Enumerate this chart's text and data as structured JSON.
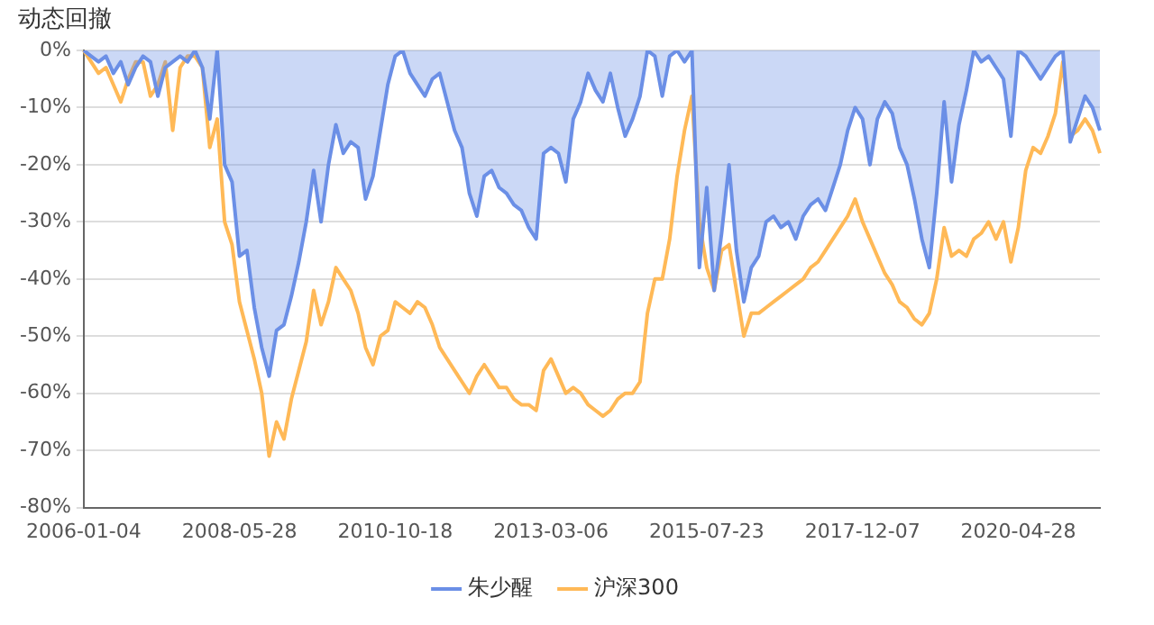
{
  "chart_data": {
    "type": "line",
    "ylabel": "动态回撤",
    "categories": [
      "2006-01-04",
      null,
      null,
      null,
      null,
      null,
      null,
      null,
      null,
      null,
      null,
      null,
      null,
      null,
      null,
      null,
      null,
      null,
      null,
      null,
      null,
      "2008-05-28",
      null,
      null,
      null,
      null,
      null,
      null,
      null,
      null,
      null,
      null,
      null,
      null,
      null,
      null,
      null,
      null,
      null,
      null,
      null,
      null,
      "2010-10-18",
      null,
      null,
      null,
      null,
      null,
      null,
      null,
      null,
      null,
      null,
      null,
      null,
      null,
      null,
      null,
      null,
      null,
      null,
      null,
      null,
      "2013-03-06",
      null,
      null,
      null,
      null,
      null,
      null,
      null,
      null,
      null,
      null,
      null,
      null,
      null,
      null,
      null,
      null,
      null,
      null,
      null,
      null,
      "2015-07-23",
      null,
      null,
      null,
      null,
      null,
      null,
      null,
      null,
      null,
      null,
      null,
      null,
      null,
      null,
      null,
      null,
      null,
      null,
      null,
      null,
      "2017-12-07",
      null,
      null,
      null,
      null,
      null,
      null,
      null,
      null,
      null,
      null,
      null,
      null,
      null,
      null,
      null,
      null,
      null,
      null,
      null,
      null,
      "2020-04-28",
      null,
      null,
      null,
      null,
      null,
      null,
      null,
      null,
      null,
      null,
      null
    ],
    "series": [
      {
        "name": "朱少醒",
        "type": "area",
        "color": "#6b8fe6",
        "values": [
          0,
          -1,
          -2,
          -1,
          -4,
          -2,
          -6,
          -3,
          -1,
          -2,
          -8,
          -3,
          -2,
          -1,
          -2,
          0,
          -3,
          -12,
          0,
          -20,
          -23,
          -36,
          -35,
          -45,
          -52,
          -57,
          -49,
          -48,
          -43,
          -37,
          -30,
          -21,
          -30,
          -20,
          -13,
          -18,
          -16,
          -17,
          -26,
          -22,
          -14,
          -6,
          -1,
          0,
          -4,
          -6,
          -8,
          -5,
          -4,
          -9,
          -14,
          -17,
          -25,
          -29,
          -22,
          -21,
          -24,
          -25,
          -27,
          -28,
          -31,
          -33,
          -18,
          -17,
          -18,
          -23,
          -12,
          -9,
          -4,
          -7,
          -9,
          -4,
          -10,
          -15,
          -12,
          -8,
          0,
          -1,
          -8,
          -1,
          0,
          -2,
          0,
          -38,
          -24,
          -42,
          -32,
          -20,
          -35,
          -44,
          -38,
          -36,
          -30,
          -29,
          -31,
          -30,
          -33,
          -29,
          -27,
          -26,
          -28,
          -24,
          -20,
          -14,
          -10,
          -12,
          -20,
          -12,
          -9,
          -11,
          -17,
          -20,
          -26,
          -33,
          -38,
          -25,
          -9,
          -23,
          -13,
          -7,
          0,
          -2,
          -1,
          -3,
          -5,
          -15,
          0,
          -1,
          -3,
          -5,
          -3,
          -1,
          0,
          -16,
          -12,
          -8,
          -10,
          -14
        ]
      },
      {
        "name": "沪深300",
        "type": "line",
        "color": "#ffb957",
        "values": [
          0,
          -2,
          -4,
          -3,
          -6,
          -9,
          -5,
          -2,
          -2,
          -8,
          -6,
          -2,
          -14,
          -3,
          -1,
          -1,
          -3,
          -17,
          -12,
          -30,
          -34,
          -44,
          -49,
          -54,
          -60,
          -71,
          -65,
          -68,
          -61,
          -56,
          -51,
          -42,
          -48,
          -44,
          -38,
          -40,
          -42,
          -46,
          -52,
          -55,
          -50,
          -49,
          -44,
          -45,
          -46,
          -44,
          -45,
          -48,
          -52,
          -54,
          -56,
          -58,
          -60,
          -57,
          -55,
          -57,
          -59,
          -59,
          -61,
          -62,
          -62,
          -63,
          -56,
          -54,
          -57,
          -60,
          -59,
          -60,
          -62,
          -63,
          -64,
          -63,
          -61,
          -60,
          -60,
          -58,
          -46,
          -40,
          -40,
          -33,
          -22,
          -14,
          -8,
          -30,
          -38,
          -42,
          -35,
          -34,
          -42,
          -50,
          -46,
          -46,
          -45,
          -44,
          -43,
          -42,
          -41,
          -40,
          -38,
          -37,
          -35,
          -33,
          -31,
          -29,
          -26,
          -30,
          -33,
          -36,
          -39,
          -41,
          -44,
          -45,
          -47,
          -48,
          -46,
          -40,
          -31,
          -36,
          -35,
          -36,
          -33,
          -32,
          -30,
          -33,
          -30,
          -37,
          -31,
          -21,
          -17,
          -18,
          -15,
          -11,
          -2,
          -15,
          -14,
          -12,
          -14,
          -18
        ]
      }
    ],
    "ylim": [
      -80,
      0
    ],
    "yticks": [
      {
        "value": -80,
        "label": "-80%"
      },
      {
        "value": -70,
        "label": "-70%"
      },
      {
        "value": -60,
        "label": "-60%"
      },
      {
        "value": -50,
        "label": "-50%"
      },
      {
        "value": -40,
        "label": "-40%"
      },
      {
        "value": -30,
        "label": "-30%"
      },
      {
        "value": -20,
        "label": "-20%"
      },
      {
        "value": -10,
        "label": "-10%"
      },
      {
        "value": 0,
        "label": "0%"
      }
    ],
    "grid": "y",
    "legend": "bottom"
  }
}
